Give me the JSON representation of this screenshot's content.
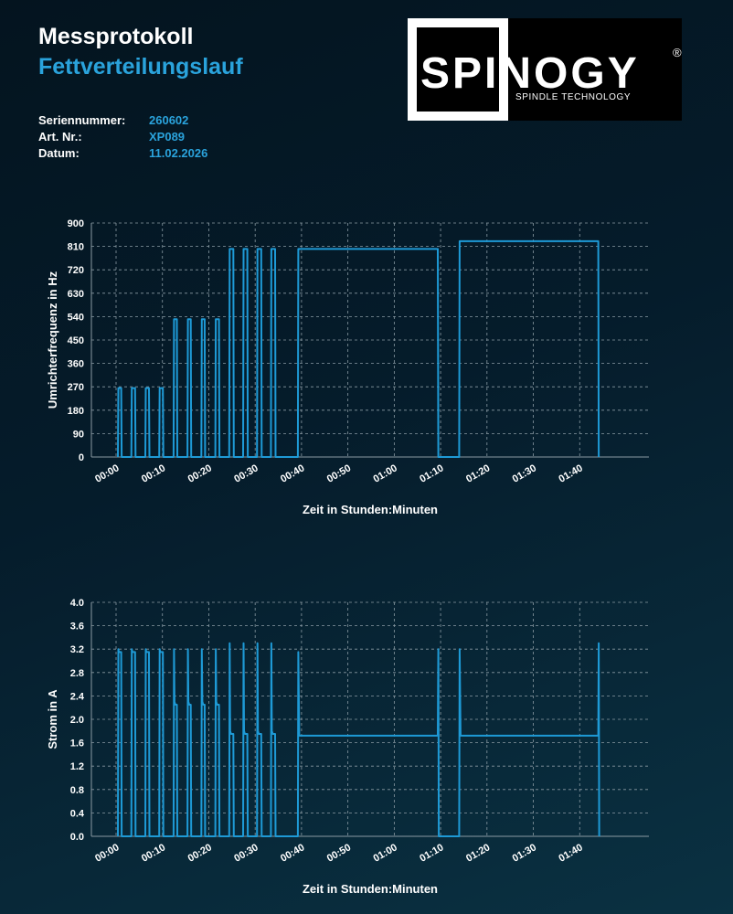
{
  "header": {
    "title": "Messprotokoll",
    "subtitle": "Fettverteilungslauf",
    "meta": [
      {
        "label": "Seriennummer:",
        "value": "260602"
      },
      {
        "label": "Art. Nr.:",
        "value": "XP089"
      },
      {
        "label": "Datum:",
        "value": "11.02.2026"
      }
    ]
  },
  "logo": {
    "brand": "SPINOGY",
    "tagline": "SPINDLE TECHNOLOGY",
    "mark": "®"
  },
  "colors": {
    "accent": "#2aa3dc",
    "line": "#1e9ad6",
    "grid": "#8a9aa3"
  },
  "chart_data": [
    {
      "type": "line",
      "xlabel": "Zeit in Stunden:Minuten",
      "ylabel": "Umrichterfrequenz in Hz",
      "ylim": [
        0,
        900
      ],
      "xlim": [
        0,
        110
      ],
      "x_ticks": [
        "00:00",
        "00:10",
        "00:20",
        "00:30",
        "00:40",
        "00:50",
        "01:00",
        "01:10",
        "01:20",
        "01:30",
        "01:40"
      ],
      "y_ticks": [
        "0",
        "90",
        "180",
        "270",
        "360",
        "450",
        "540",
        "630",
        "720",
        "810",
        "900"
      ],
      "grid": true,
      "series": [
        {
          "x_minutes": [
            0.4,
            0.5,
            1.1,
            1.2,
            3.3,
            3.4,
            4.1,
            4.2,
            6.3,
            6.4,
            7.1,
            7.2,
            9.3,
            9.4,
            10.1,
            10.2,
            12.4,
            12.5,
            13.1,
            13.2,
            15.4,
            15.5,
            16.1,
            16.2,
            18.4,
            18.5,
            19.1,
            19.2,
            21.4,
            21.5,
            22.2,
            22.3,
            24.4,
            24.5,
            25.3,
            25.4,
            27.4,
            27.5,
            28.3,
            28.4,
            30.4,
            30.5,
            31.3,
            31.4,
            33.4,
            33.5,
            34.3,
            34.4,
            39.2,
            39.3,
            69.4,
            69.5,
            74.0,
            74.1,
            104.0,
            104.1
          ],
          "y_hz": [
            0,
            265,
            265,
            0,
            0,
            265,
            265,
            0,
            0,
            265,
            265,
            0,
            0,
            265,
            265,
            0,
            0,
            530,
            530,
            0,
            0,
            530,
            530,
            0,
            0,
            530,
            530,
            0,
            0,
            530,
            530,
            0,
            0,
            800,
            800,
            0,
            0,
            800,
            800,
            0,
            0,
            800,
            800,
            0,
            0,
            800,
            800,
            0,
            0,
            800,
            800,
            0,
            0,
            830,
            830,
            0
          ]
        }
      ]
    },
    {
      "type": "line",
      "xlabel": "Zeit in Stunden:Minuten",
      "ylabel": "Strom in A",
      "ylim": [
        0,
        4.0
      ],
      "xlim": [
        0,
        110
      ],
      "x_ticks": [
        "00:00",
        "00:10",
        "00:20",
        "00:30",
        "00:40",
        "00:50",
        "01:00",
        "01:10",
        "01:20",
        "01:30",
        "01:40"
      ],
      "y_ticks": [
        "0.0",
        "0.4",
        "0.8",
        "1.2",
        "1.6",
        "2.0",
        "2.4",
        "2.8",
        "3.2",
        "3.6",
        "4.0"
      ],
      "grid": true,
      "series": [
        {
          "x_minutes": [
            0.4,
            0.5,
            0.6,
            1.1,
            1.2,
            3.3,
            3.4,
            3.5,
            4.1,
            4.2,
            6.3,
            6.4,
            6.5,
            7.1,
            7.2,
            9.3,
            9.4,
            9.5,
            10.1,
            10.2,
            12.4,
            12.5,
            12.6,
            12.8,
            13.1,
            13.2,
            15.4,
            15.5,
            15.6,
            15.8,
            16.1,
            16.2,
            18.4,
            18.5,
            18.6,
            18.8,
            19.1,
            19.2,
            21.4,
            21.5,
            21.6,
            21.8,
            22.2,
            22.3,
            24.4,
            24.5,
            24.6,
            24.8,
            25.3,
            25.4,
            27.4,
            27.5,
            27.6,
            27.8,
            28.3,
            28.4,
            30.4,
            30.5,
            30.6,
            30.8,
            31.3,
            31.4,
            33.4,
            33.5,
            33.6,
            33.8,
            34.3,
            34.4,
            39.2,
            39.3,
            39.5,
            69.4,
            69.5,
            69.6,
            74.0,
            74.1,
            74.3,
            104.0,
            104.1,
            104.2
          ],
          "y_a": [
            0,
            3.2,
            3.15,
            3.15,
            0,
            0,
            3.2,
            3.15,
            3.15,
            0,
            0,
            3.2,
            3.15,
            3.15,
            0,
            0,
            3.2,
            3.15,
            3.15,
            0,
            0,
            3.2,
            2.3,
            2.25,
            2.25,
            0,
            0,
            3.2,
            2.3,
            2.25,
            2.25,
            0,
            0,
            3.2,
            2.3,
            2.25,
            2.25,
            0,
            0,
            3.2,
            2.3,
            2.25,
            2.25,
            0,
            0,
            3.3,
            1.8,
            1.75,
            1.75,
            0,
            0,
            3.3,
            1.8,
            1.75,
            1.75,
            0,
            0,
            3.3,
            1.8,
            1.75,
            1.75,
            0,
            0,
            3.3,
            1.8,
            1.75,
            1.75,
            0,
            0,
            3.15,
            1.72,
            1.72,
            3.2,
            0,
            0,
            3.2,
            1.72,
            1.72,
            3.3,
            0
          ]
        }
      ]
    }
  ]
}
